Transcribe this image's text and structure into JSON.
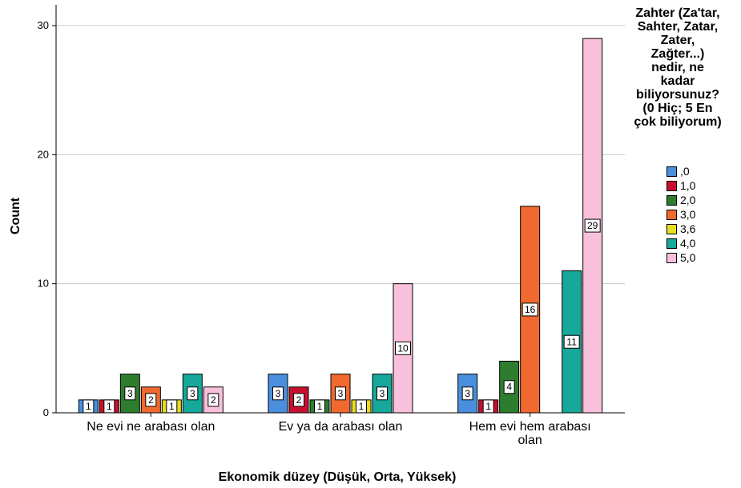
{
  "chart_data": {
    "type": "bar",
    "title": "",
    "ylabel": "Count",
    "xlabel": "Ekonomik düzey (Düşük, Orta, Yüksek)",
    "ylim": [
      0,
      30
    ],
    "yticks": [
      0,
      10,
      20,
      30
    ],
    "grid": true,
    "legend_position": "right",
    "legend_title_lines": [
      "Zahter (Za'tar,",
      "Sahter, Zatar,",
      "Zater,",
      "Zağter...)",
      "nedir, ne",
      "kadar",
      "biliyorsunuz?",
      "(0 Hiç; 5 En",
      "çok biliyorum)"
    ],
    "categories": [
      {
        "lines": [
          "Ne evi ne arabası olan"
        ]
      },
      {
        "lines": [
          "Ev ya da arabası olan"
        ]
      },
      {
        "lines": [
          "Hem evi hem arabası",
          "olan"
        ]
      }
    ],
    "series": [
      {
        "name": ",0",
        "color": "#4a8fde",
        "values": [
          1,
          3,
          3
        ]
      },
      {
        "name": "1,0",
        "color": "#c8102e",
        "values": [
          1,
          2,
          1
        ]
      },
      {
        "name": "2,0",
        "color": "#2e7d2e",
        "values": [
          3,
          1,
          4
        ]
      },
      {
        "name": "3,0",
        "color": "#f0692e",
        "values": [
          2,
          3,
          16
        ]
      },
      {
        "name": "3,6",
        "color": "#e8dc1e",
        "values": [
          1,
          1,
          0
        ]
      },
      {
        "name": "4,0",
        "color": "#16a89a",
        "values": [
          3,
          3,
          11
        ]
      },
      {
        "name": "5,0",
        "color": "#f9c0dc",
        "values": [
          2,
          10,
          29
        ]
      }
    ]
  }
}
